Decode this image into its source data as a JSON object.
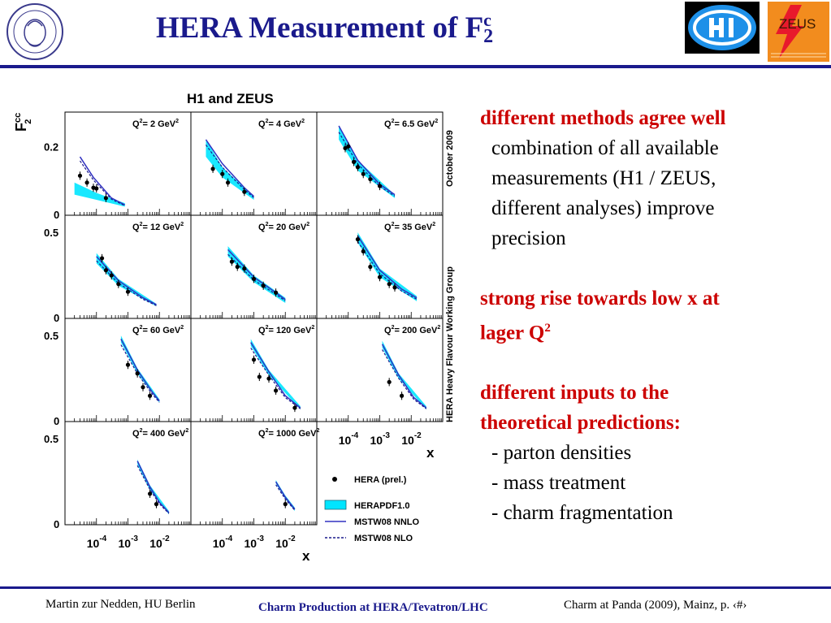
{
  "title": {
    "main": "HERA Measurement of F",
    "sub": "2",
    "sup": "c"
  },
  "logos": {
    "left_icon": "humboldt-seal-icon",
    "right_icons": [
      "h1-logo-icon",
      "zeus-logo-icon"
    ],
    "zeus_text": "ZEUS"
  },
  "bullets": [
    {
      "heading": "different methods agree well",
      "lines": [
        "combination of all available",
        "measurements (H1 / ZEUS,",
        "different analyses) improve",
        "precision"
      ]
    },
    {
      "heading_lines": [
        "strong rise towards low x at",
        "lager Q"
      ],
      "heading_sup": "2"
    },
    {
      "heading_lines": [
        "different inputs to the",
        "theoretical predictions:"
      ],
      "items": [
        "- parton densities",
        "- mass treatment",
        "- charm fragmentation"
      ]
    }
  ],
  "footer": {
    "left": "Martin zur Nedden, HU Berlin",
    "center": "Charm Production at HERA/Tevatron/LHC",
    "right": "Charm at Panda (2009), Mainz, p. ‹#›"
  },
  "chart_data": {
    "type": "scatter",
    "title": "H1 and ZEUS",
    "ylabel_main": "F",
    "ylabel_sup": "cc",
    "ylabel_sub": "2",
    "xlabel": "x",
    "x_scale": "log",
    "x_range": [
      1e-05,
      0.1
    ],
    "x_tick_labels": [
      {
        "base": "10",
        "exp": "-4"
      },
      {
        "base": "10",
        "exp": "-3"
      },
      {
        "base": "10",
        "exp": "-2"
      }
    ],
    "side_labels": [
      "October 2009",
      "HERA Heavy Flavour Working Group"
    ],
    "legend": [
      {
        "label": "HERA (prel.)",
        "style": "points"
      },
      {
        "label": "HERAPDF1.0",
        "style": "band"
      },
      {
        "label": "MSTW08 NNLO",
        "style": "solid"
      },
      {
        "label": "MSTW08 NLO",
        "style": "dashed"
      }
    ],
    "colors": {
      "band": "#00e5ff",
      "solid": "#3030c0",
      "dashed": "#1a1a8c",
      "points": "#000000"
    },
    "panels": [
      {
        "q2": "2",
        "ylim": [
          0,
          0.3
        ],
        "yticks": [
          "0.2",
          "0"
        ],
        "points": [
          [
            3e-05,
            0.115
          ],
          [
            5e-05,
            0.095
          ],
          [
            8e-05,
            0.08
          ],
          [
            0.0001,
            0.078
          ],
          [
            0.0002,
            0.05
          ]
        ],
        "curve": [
          [
            3e-05,
            0.17
          ],
          [
            8e-05,
            0.11
          ],
          [
            0.0003,
            0.05
          ],
          [
            0.0008,
            0.03
          ]
        ],
        "band": [
          [
            2e-05,
            0.06,
            0.095
          ],
          [
            0.0001,
            0.045,
            0.065
          ],
          [
            0.0008,
            0.025,
            0.035
          ]
        ]
      },
      {
        "q2": "4",
        "ylim": [
          0,
          0.3
        ],
        "yticks": [],
        "points": [
          [
            5e-05,
            0.135
          ],
          [
            0.0001,
            0.12
          ],
          [
            0.00015,
            0.095
          ],
          [
            0.0005,
            0.068
          ]
        ],
        "curve": [
          [
            3e-05,
            0.22
          ],
          [
            0.0001,
            0.15
          ],
          [
            0.0005,
            0.08
          ],
          [
            0.001,
            0.055
          ]
        ],
        "band": [
          [
            3e-05,
            0.17,
            0.22
          ],
          [
            0.0001,
            0.11,
            0.14
          ],
          [
            0.001,
            0.045,
            0.055
          ]
        ]
      },
      {
        "q2": "6.5",
        "ylim": [
          0,
          0.3
        ],
        "yticks": [],
        "points": [
          [
            8e-05,
            0.195
          ],
          [
            0.0001,
            0.2
          ],
          [
            0.00015,
            0.155
          ],
          [
            0.0002,
            0.14
          ],
          [
            0.0003,
            0.12
          ],
          [
            0.0005,
            0.105
          ],
          [
            0.001,
            0.085
          ]
        ],
        "curve": [
          [
            5e-05,
            0.26
          ],
          [
            0.0002,
            0.16
          ],
          [
            0.001,
            0.09
          ],
          [
            0.003,
            0.06
          ]
        ],
        "band": [
          [
            5e-05,
            0.22,
            0.26
          ],
          [
            0.0002,
            0.13,
            0.16
          ],
          [
            0.003,
            0.05,
            0.06
          ]
        ]
      },
      {
        "q2": "12",
        "ylim": [
          0,
          0.6
        ],
        "yticks": [
          "0.5",
          "0"
        ],
        "points": [
          [
            0.00015,
            0.35
          ],
          [
            0.0002,
            0.28
          ],
          [
            0.0003,
            0.25
          ],
          [
            0.0005,
            0.2
          ],
          [
            0.001,
            0.155
          ]
        ],
        "curve": [
          [
            0.0001,
            0.36
          ],
          [
            0.0005,
            0.22
          ],
          [
            0.003,
            0.12
          ],
          [
            0.008,
            0.08
          ]
        ],
        "band": [
          [
            0.0001,
            0.32,
            0.38
          ],
          [
            0.0005,
            0.19,
            0.23
          ],
          [
            0.008,
            0.07,
            0.085
          ]
        ]
      },
      {
        "q2": "20",
        "ylim": [
          0,
          0.6
        ],
        "yticks": [],
        "points": [
          [
            0.0002,
            0.33
          ],
          [
            0.0003,
            0.3
          ],
          [
            0.0005,
            0.29
          ],
          [
            0.001,
            0.23
          ],
          [
            0.002,
            0.19
          ],
          [
            0.005,
            0.15
          ]
        ],
        "curve": [
          [
            0.00015,
            0.4
          ],
          [
            0.001,
            0.24
          ],
          [
            0.005,
            0.15
          ],
          [
            0.01,
            0.11
          ]
        ],
        "band": [
          [
            0.00015,
            0.36,
            0.42
          ],
          [
            0.001,
            0.21,
            0.25
          ],
          [
            0.01,
            0.09,
            0.12
          ]
        ]
      },
      {
        "q2": "35",
        "ylim": [
          0,
          0.6
        ],
        "yticks": [],
        "points": [
          [
            0.0002,
            0.46
          ],
          [
            0.0003,
            0.39
          ],
          [
            0.0005,
            0.3
          ],
          [
            0.001,
            0.24
          ],
          [
            0.002,
            0.2
          ],
          [
            0.003,
            0.18
          ]
        ],
        "curve": [
          [
            0.0002,
            0.48
          ],
          [
            0.001,
            0.28
          ],
          [
            0.005,
            0.17
          ],
          [
            0.015,
            0.12
          ]
        ],
        "band": [
          [
            0.0002,
            0.44,
            0.5
          ],
          [
            0.001,
            0.24,
            0.29
          ],
          [
            0.015,
            0.1,
            0.13
          ]
        ]
      },
      {
        "q2": "60",
        "ylim": [
          0,
          0.6
        ],
        "yticks": [
          "0.5",
          "0"
        ],
        "points": [
          [
            0.001,
            0.33
          ],
          [
            0.002,
            0.28
          ],
          [
            0.003,
            0.2
          ],
          [
            0.005,
            0.15
          ]
        ],
        "curve": [
          [
            0.0006,
            0.48
          ],
          [
            0.002,
            0.3
          ],
          [
            0.006,
            0.17
          ],
          [
            0.01,
            0.12
          ]
        ],
        "band": [
          [
            0.0006,
            0.46,
            0.5
          ],
          [
            0.002,
            0.28,
            0.31
          ],
          [
            0.01,
            0.11,
            0.13
          ]
        ]
      },
      {
        "q2": "120",
        "ylim": [
          0,
          0.6
        ],
        "yticks": [],
        "points": [
          [
            0.001,
            0.36
          ],
          [
            0.0015,
            0.26
          ],
          [
            0.003,
            0.25
          ],
          [
            0.005,
            0.18
          ],
          [
            0.02,
            0.08
          ]
        ],
        "curve": [
          [
            0.0008,
            0.46
          ],
          [
            0.003,
            0.29
          ],
          [
            0.01,
            0.15
          ],
          [
            0.03,
            0.08
          ]
        ],
        "band": [
          [
            0.0008,
            0.44,
            0.48
          ],
          [
            0.003,
            0.27,
            0.3
          ],
          [
            0.03,
            0.07,
            0.09
          ]
        ]
      },
      {
        "q2": "200",
        "ylim": [
          0,
          0.6
        ],
        "yticks": [],
        "points": [
          [
            0.002,
            0.23
          ],
          [
            0.005,
            0.15
          ]
        ],
        "curve": [
          [
            0.0012,
            0.45
          ],
          [
            0.004,
            0.27
          ],
          [
            0.012,
            0.14
          ],
          [
            0.03,
            0.08
          ]
        ],
        "band": [
          [
            0.0012,
            0.43,
            0.47
          ],
          [
            0.004,
            0.25,
            0.28
          ],
          [
            0.03,
            0.07,
            0.09
          ]
        ]
      },
      {
        "q2": "400",
        "ylim": [
          0,
          0.6
        ],
        "yticks": [
          "0.5",
          "0"
        ],
        "points": [
          [
            0.005,
            0.18
          ],
          [
            0.008,
            0.12
          ]
        ],
        "curve": [
          [
            0.002,
            0.37
          ],
          [
            0.005,
            0.22
          ],
          [
            0.01,
            0.13
          ],
          [
            0.02,
            0.07
          ]
        ],
        "band": [
          [
            0.002,
            0.35,
            0.38
          ],
          [
            0.005,
            0.2,
            0.23
          ],
          [
            0.02,
            0.06,
            0.08
          ]
        ]
      },
      {
        "q2": "1000",
        "ylim": [
          0,
          0.6
        ],
        "yticks": [],
        "points": [
          [
            0.01,
            0.12
          ]
        ],
        "curve": [
          [
            0.005,
            0.25
          ],
          [
            0.01,
            0.16
          ],
          [
            0.02,
            0.09
          ]
        ],
        "band": [
          [
            0.005,
            0.24,
            0.26
          ],
          [
            0.01,
            0.15,
            0.17
          ],
          [
            0.02,
            0.08,
            0.1
          ]
        ]
      }
    ]
  }
}
